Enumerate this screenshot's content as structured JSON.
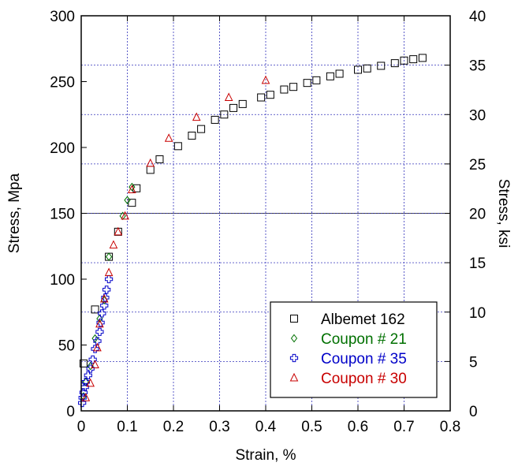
{
  "chart_data": {
    "type": "scatter",
    "title": "",
    "xlabel": "Strain, %",
    "ylabel": "Stress, Mpa",
    "y2label": "Stress, ksi",
    "xlim": [
      0,
      0.8
    ],
    "ylim": [
      0,
      300
    ],
    "y2lim": [
      0,
      40
    ],
    "xticks": [
      "0",
      "0.1",
      "0.2",
      "0.3",
      "0.4",
      "0.5",
      "0.6",
      "0.7",
      "0.8"
    ],
    "yticks": [
      "0",
      "50",
      "100",
      "150",
      "200",
      "250",
      "300"
    ],
    "y2ticks": [
      "0",
      "5",
      "10",
      "15",
      "20",
      "25",
      "30",
      "35",
      "40"
    ],
    "grid": true,
    "legend_position": "bottom-right",
    "series": [
      {
        "name": "Albemet 162",
        "marker": "square",
        "color": "#000000",
        "points": [
          [
            0.005,
            36
          ],
          [
            0.03,
            77
          ],
          [
            0.06,
            117
          ],
          [
            0.08,
            136
          ],
          [
            0.11,
            158
          ],
          [
            0.12,
            169
          ],
          [
            0.15,
            183
          ],
          [
            0.17,
            191
          ],
          [
            0.21,
            201
          ],
          [
            0.24,
            209
          ],
          [
            0.26,
            214
          ],
          [
            0.29,
            221
          ],
          [
            0.31,
            225
          ],
          [
            0.33,
            230
          ],
          [
            0.35,
            233
          ],
          [
            0.39,
            238
          ],
          [
            0.41,
            240
          ],
          [
            0.44,
            244
          ],
          [
            0.46,
            246
          ],
          [
            0.49,
            249
          ],
          [
            0.51,
            251
          ],
          [
            0.54,
            254
          ],
          [
            0.56,
            256
          ],
          [
            0.6,
            259
          ],
          [
            0.62,
            260
          ],
          [
            0.65,
            262
          ],
          [
            0.68,
            264
          ],
          [
            0.7,
            266
          ],
          [
            0.72,
            267
          ],
          [
            0.74,
            268
          ]
        ]
      },
      {
        "name": "Coupon # 21",
        "marker": "diamond",
        "color": "#007000",
        "points": [
          [
            0.005,
            11
          ],
          [
            0.01,
            22
          ],
          [
            0.02,
            34
          ],
          [
            0.03,
            55
          ],
          [
            0.04,
            70
          ],
          [
            0.05,
            84
          ],
          [
            0.06,
            117
          ],
          [
            0.09,
            148
          ],
          [
            0.1,
            160
          ],
          [
            0.11,
            170
          ]
        ]
      },
      {
        "name": "Coupon # 35",
        "marker": "cross",
        "color": "#0000c8",
        "points": [
          [
            0.002,
            6
          ],
          [
            0.003,
            10
          ],
          [
            0.005,
            14
          ],
          [
            0.008,
            18
          ],
          [
            0.01,
            22
          ],
          [
            0.015,
            27
          ],
          [
            0.02,
            32
          ],
          [
            0.025,
            39
          ],
          [
            0.03,
            47
          ],
          [
            0.035,
            53
          ],
          [
            0.04,
            60
          ],
          [
            0.042,
            67
          ],
          [
            0.045,
            74
          ],
          [
            0.05,
            80
          ],
          [
            0.052,
            86
          ],
          [
            0.055,
            92
          ],
          [
            0.06,
            100
          ]
        ]
      },
      {
        "name": "Coupon # 30",
        "marker": "triangle",
        "color": "#c80000",
        "points": [
          [
            0.01,
            10
          ],
          [
            0.02,
            21
          ],
          [
            0.03,
            35
          ],
          [
            0.035,
            48
          ],
          [
            0.04,
            66
          ],
          [
            0.05,
            85
          ],
          [
            0.06,
            105
          ],
          [
            0.07,
            126
          ],
          [
            0.08,
            136
          ],
          [
            0.095,
            148
          ],
          [
            0.11,
            168
          ],
          [
            0.15,
            188
          ],
          [
            0.19,
            207
          ],
          [
            0.25,
            223
          ],
          [
            0.32,
            238
          ],
          [
            0.4,
            251
          ]
        ]
      }
    ]
  }
}
